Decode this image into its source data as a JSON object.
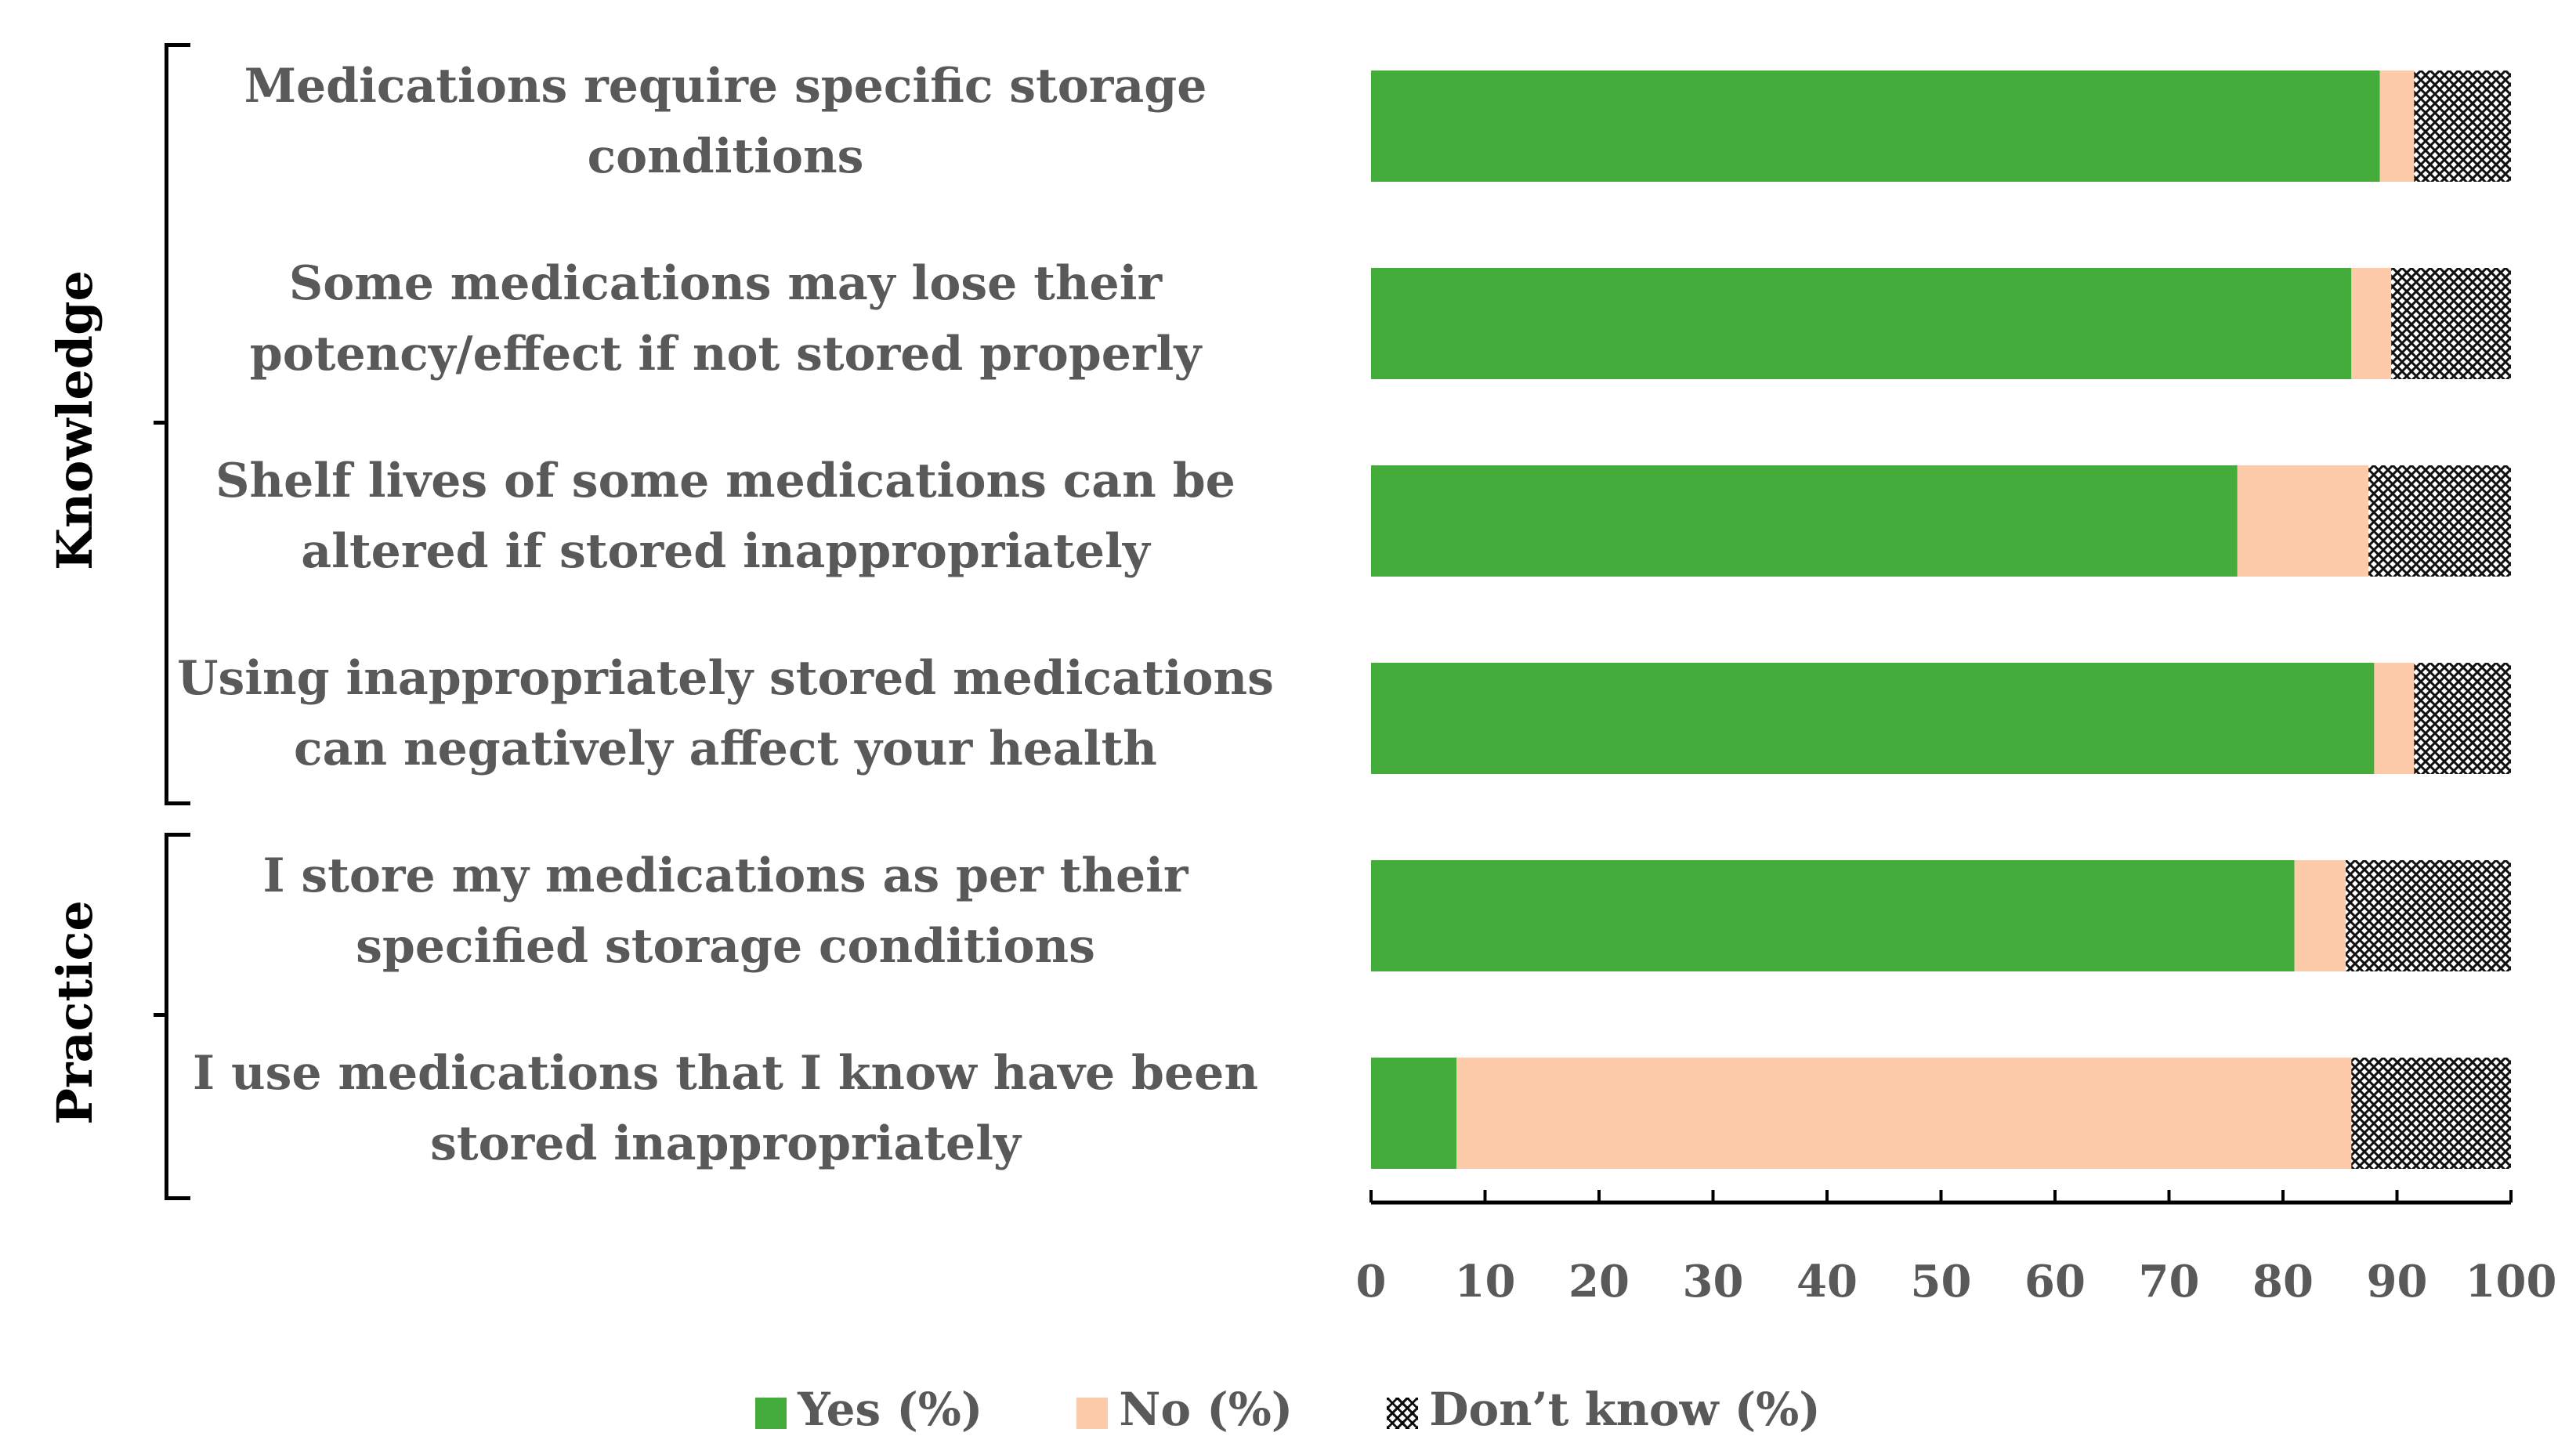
{
  "chart_data": {
    "type": "bar",
    "orientation": "horizontal",
    "stacked": true,
    "groups": [
      {
        "name": "Knowledge",
        "rows": [
          0,
          1,
          2,
          3
        ]
      },
      {
        "name": "Practice",
        "rows": [
          4,
          5
        ]
      }
    ],
    "categories": [
      [
        "Medications require specific storage",
        "conditions"
      ],
      [
        "Some medications may lose their",
        "potency/effect if not stored properly"
      ],
      [
        "Shelf lives of some medications can be",
        "altered if stored inappropriately"
      ],
      [
        "Using inappropriately stored medications",
        "can negatively affect your health"
      ],
      [
        "I store my medications as per their",
        "specified storage conditions"
      ],
      [
        "I use medications that I know have been",
        "stored inappropriately"
      ]
    ],
    "series": [
      {
        "name": "Yes (%)",
        "color": "#43ac3a",
        "values": [
          88.5,
          86,
          76,
          88,
          81,
          7.5
        ]
      },
      {
        "name": "No (%)",
        "color": "#fdcbaa",
        "values": [
          3,
          3.5,
          11.5,
          3.5,
          4.5,
          78.5
        ]
      },
      {
        "name": "Don’t know (%)",
        "color": "#d9d9d9",
        "pattern": "crosshatch",
        "values": [
          8.5,
          10.5,
          12.5,
          8.5,
          14.5,
          14
        ]
      }
    ],
    "xlim": [
      0,
      100
    ],
    "xticks": [
      0,
      10,
      20,
      30,
      40,
      50,
      60,
      70,
      80,
      90,
      100
    ],
    "xlabel": "",
    "ylabel": "",
    "legend_position": "bottom"
  }
}
